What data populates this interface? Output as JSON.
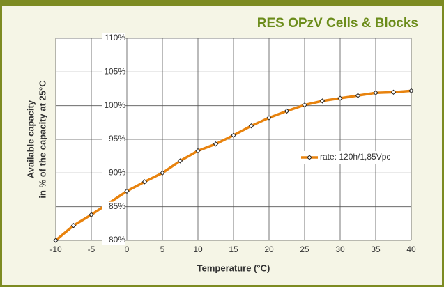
{
  "chart_data": {
    "type": "line",
    "title": "RES OPzV Cells & Blocks",
    "xlabel": "Temperature (°C)",
    "ylabel": [
      "Available capacity",
      "in % of the capacity at 25°C"
    ],
    "x": [
      -10,
      -7.5,
      -5,
      0,
      2.5,
      5,
      7.5,
      10,
      12.5,
      15,
      17.5,
      20,
      22.5,
      25,
      27.5,
      30,
      32.5,
      35,
      37.5,
      40
    ],
    "series": [
      {
        "name": "rate: 120h/1,85Vpc",
        "color": "#e8830e",
        "values": [
          80,
          82.2,
          83.8,
          87.3,
          88.7,
          90.0,
          91.8,
          93.3,
          94.3,
          95.6,
          97.0,
          98.2,
          99.2,
          100.1,
          100.7,
          101.1,
          101.5,
          101.9,
          102.0,
          102.2
        ]
      }
    ],
    "xlim": [
      -10,
      40
    ],
    "xticks": [
      -10,
      -5,
      0,
      5,
      10,
      15,
      20,
      25,
      30,
      35,
      40
    ],
    "ylim": [
      80,
      110
    ],
    "yticks": [
      {
        "value": 80,
        "label": "80%"
      },
      {
        "value": 85,
        "label": "85%"
      },
      {
        "value": 90,
        "label": "90%"
      },
      {
        "value": 95,
        "label": "95%"
      },
      {
        "value": 100,
        "label": "100%"
      },
      {
        "value": 105,
        "label": "105%"
      },
      {
        "value": 110,
        "label": "110%"
      }
    ],
    "grid": true,
    "legend": "right"
  }
}
